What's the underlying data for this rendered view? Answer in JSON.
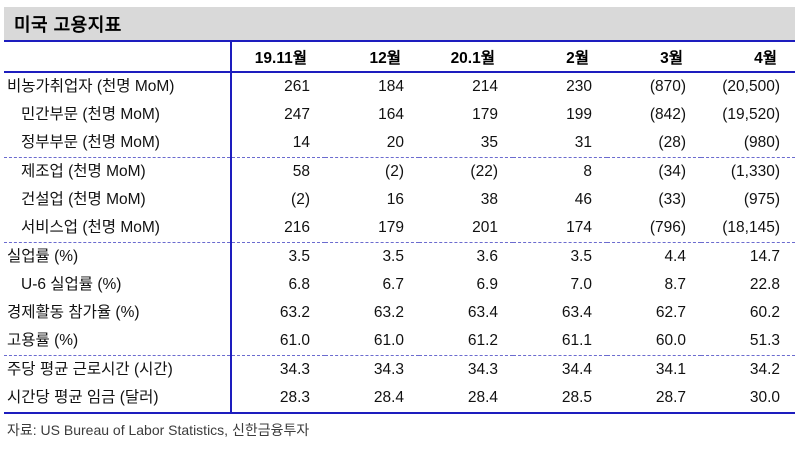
{
  "title": "미국 고용지표",
  "footer": "자료: US Bureau of Labor Statistics, 신한금융투자",
  "colors": {
    "title_band_bg": "#d9d9d9",
    "solid_border_blue": "#1d1dbe",
    "dashed_separator_blue": "#6b6bcf",
    "text": "#111111",
    "footer_text": "#3c3c3c"
  },
  "table": {
    "columns": [
      "19.11월",
      "12월",
      "20.1월",
      "2월",
      "3월",
      "4월"
    ],
    "rows": [
      {
        "label": "비농가취업자 (천명 MoM)",
        "indent": false,
        "sep_above": false,
        "values": [
          "261",
          "184",
          "214",
          "230",
          "(870)",
          "(20,500)"
        ]
      },
      {
        "label": "민간부문 (천명 MoM)",
        "indent": true,
        "sep_above": false,
        "values": [
          "247",
          "164",
          "179",
          "199",
          "(842)",
          "(19,520)"
        ]
      },
      {
        "label": "정부부문 (천명 MoM)",
        "indent": true,
        "sep_above": false,
        "values": [
          "14",
          "20",
          "35",
          "31",
          "(28)",
          "(980)"
        ]
      },
      {
        "label": "제조업 (천명 MoM)",
        "indent": true,
        "sep_above": true,
        "values": [
          "58",
          "(2)",
          "(22)",
          "8",
          "(34)",
          "(1,330)"
        ]
      },
      {
        "label": "건설업 (천명 MoM)",
        "indent": true,
        "sep_above": false,
        "values": [
          "(2)",
          "16",
          "38",
          "46",
          "(33)",
          "(975)"
        ]
      },
      {
        "label": "서비스업 (천명 MoM)",
        "indent": true,
        "sep_above": false,
        "values": [
          "216",
          "179",
          "201",
          "174",
          "(796)",
          "(18,145)"
        ]
      },
      {
        "label": "실업률 (%)",
        "indent": false,
        "sep_above": true,
        "values": [
          "3.5",
          "3.5",
          "3.6",
          "3.5",
          "4.4",
          "14.7"
        ]
      },
      {
        "label": "U-6 실업률 (%)",
        "indent": true,
        "sep_above": false,
        "values": [
          "6.8",
          "6.7",
          "6.9",
          "7.0",
          "8.7",
          "22.8"
        ]
      },
      {
        "label": "경제활동 참가율 (%)",
        "indent": false,
        "sep_above": false,
        "values": [
          "63.2",
          "63.2",
          "63.4",
          "63.4",
          "62.7",
          "60.2"
        ]
      },
      {
        "label": "고용률 (%)",
        "indent": false,
        "sep_above": false,
        "values": [
          "61.0",
          "61.0",
          "61.2",
          "61.1",
          "60.0",
          "51.3"
        ]
      },
      {
        "label": "주당 평균 근로시간 (시간)",
        "indent": false,
        "sep_above": true,
        "values": [
          "34.3",
          "34.3",
          "34.3",
          "34.4",
          "34.1",
          "34.2"
        ]
      },
      {
        "label": "시간당 평균 임금 (달러)",
        "indent": false,
        "sep_above": false,
        "values": [
          "28.3",
          "28.4",
          "28.4",
          "28.5",
          "28.7",
          "30.0"
        ]
      }
    ]
  }
}
